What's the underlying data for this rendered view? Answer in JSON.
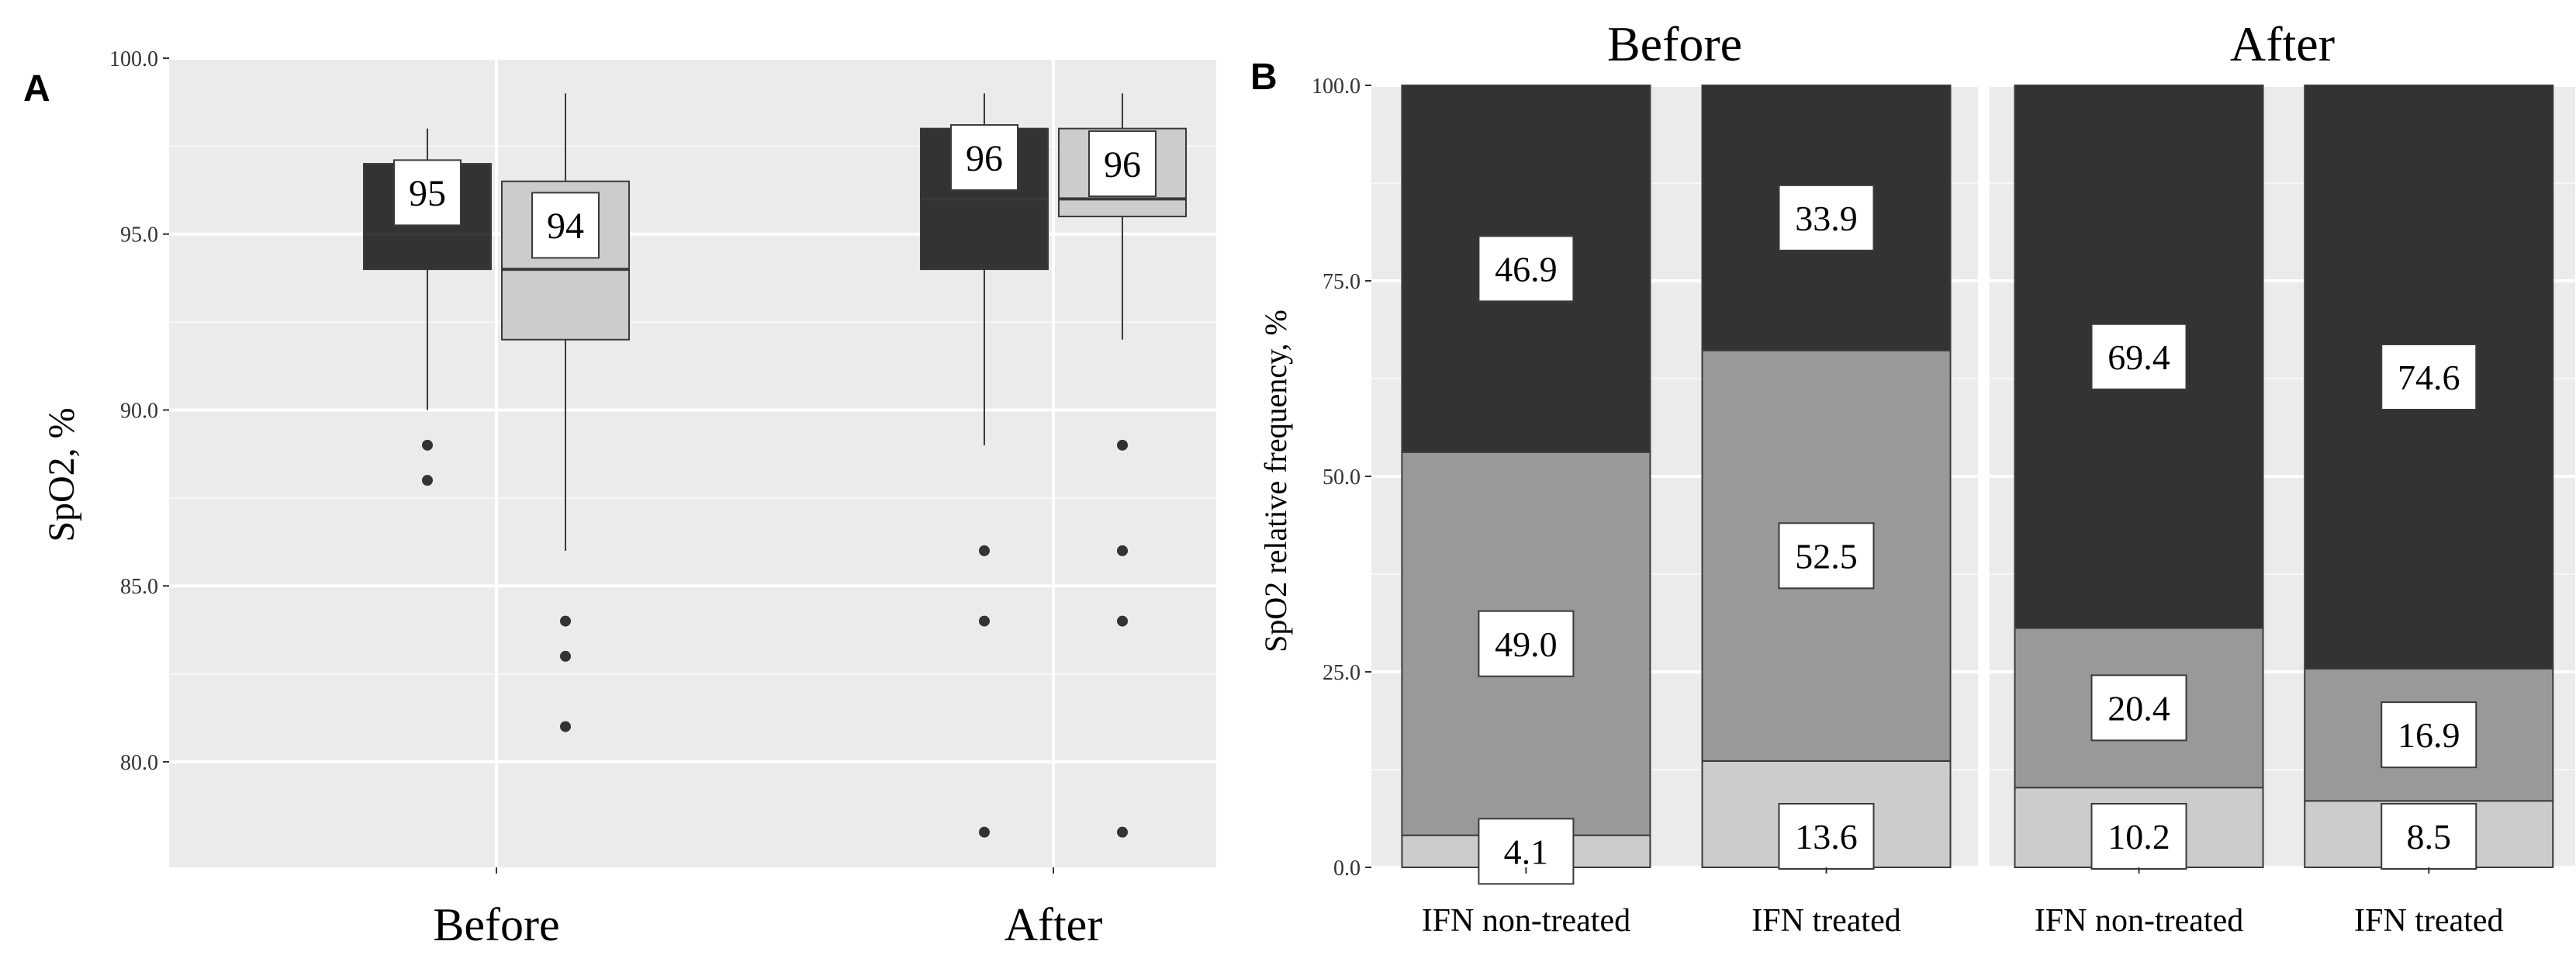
{
  "colors": {
    "panel_bg": "#ebebeb",
    "grid": "#ffffff",
    "dark": "#333333",
    "mid": "#999999",
    "light": "#cccccc",
    "border": "#3a3a3a",
    "axis_text": "#333333"
  },
  "chart_data": [
    {
      "panel_label": "A",
      "type": "box",
      "ylabel": "SpO2, %",
      "ylim": [
        77,
        100
      ],
      "yticks": [
        "100.0",
        "95.0",
        "90.0",
        "85.0",
        "80.0"
      ],
      "ytick_values": [
        100,
        95,
        90,
        85,
        80
      ],
      "categories": [
        "Before",
        "After"
      ],
      "groups": [
        {
          "category": "Before",
          "boxes": [
            {
              "series": "IFN non-treated",
              "fill": "dark",
              "min": 90,
              "q1": 94,
              "median": 95,
              "q3": 97,
              "max": 98,
              "outliers": [
                89,
                88
              ],
              "label": "95"
            },
            {
              "series": "IFN treated",
              "fill": "light",
              "min": 86,
              "q1": 92,
              "median": 94,
              "q3": 96.5,
              "max": 99,
              "outliers": [
                84,
                83,
                81
              ],
              "label": "94"
            }
          ]
        },
        {
          "category": "After",
          "boxes": [
            {
              "series": "IFN non-treated",
              "fill": "dark",
              "min": 89,
              "q1": 94,
              "median": 96,
              "q3": 98,
              "max": 99,
              "outliers": [
                86,
                84,
                78
              ],
              "label": "96"
            },
            {
              "series": "IFN treated",
              "fill": "light",
              "min": 92,
              "q1": 95.5,
              "median": 96,
              "q3": 98,
              "max": 99,
              "outliers": [
                89,
                86,
                84,
                78
              ],
              "label": "96"
            }
          ]
        }
      ]
    },
    {
      "panel_label": "B",
      "type": "stacked-bar",
      "ylabel": "SpO2 relative frequency, %",
      "ylim": [
        0,
        100
      ],
      "yticks": [
        "100.0",
        "75.0",
        "50.0",
        "25.0",
        "0.0"
      ],
      "ytick_values": [
        100,
        75,
        50,
        25,
        0
      ],
      "facets": [
        {
          "title": "Before",
          "bars": [
            {
              "category": "IFN non-treated",
              "segments": [
                {
                  "fill": "light",
                  "value": 4.1,
                  "label": "4.1"
                },
                {
                  "fill": "mid",
                  "value": 49.0,
                  "label": "49.0"
                },
                {
                  "fill": "dark",
                  "value": 46.9,
                  "label": "46.9"
                }
              ]
            },
            {
              "category": "IFN treated",
              "segments": [
                {
                  "fill": "light",
                  "value": 13.6,
                  "label": "13.6"
                },
                {
                  "fill": "mid",
                  "value": 52.5,
                  "label": "52.5"
                },
                {
                  "fill": "dark",
                  "value": 33.9,
                  "label": "33.9"
                }
              ]
            }
          ]
        },
        {
          "title": "After",
          "bars": [
            {
              "category": "IFN non-treated",
              "segments": [
                {
                  "fill": "light",
                  "value": 10.2,
                  "label": "10.2"
                },
                {
                  "fill": "mid",
                  "value": 20.4,
                  "label": "20.4"
                },
                {
                  "fill": "dark",
                  "value": 69.4,
                  "label": "69.4"
                }
              ]
            },
            {
              "category": "IFN treated",
              "segments": [
                {
                  "fill": "light",
                  "value": 8.5,
                  "label": "8.5"
                },
                {
                  "fill": "mid",
                  "value": 16.9,
                  "label": "16.9"
                },
                {
                  "fill": "dark",
                  "value": 74.6,
                  "label": "74.6"
                }
              ]
            }
          ]
        }
      ]
    }
  ]
}
